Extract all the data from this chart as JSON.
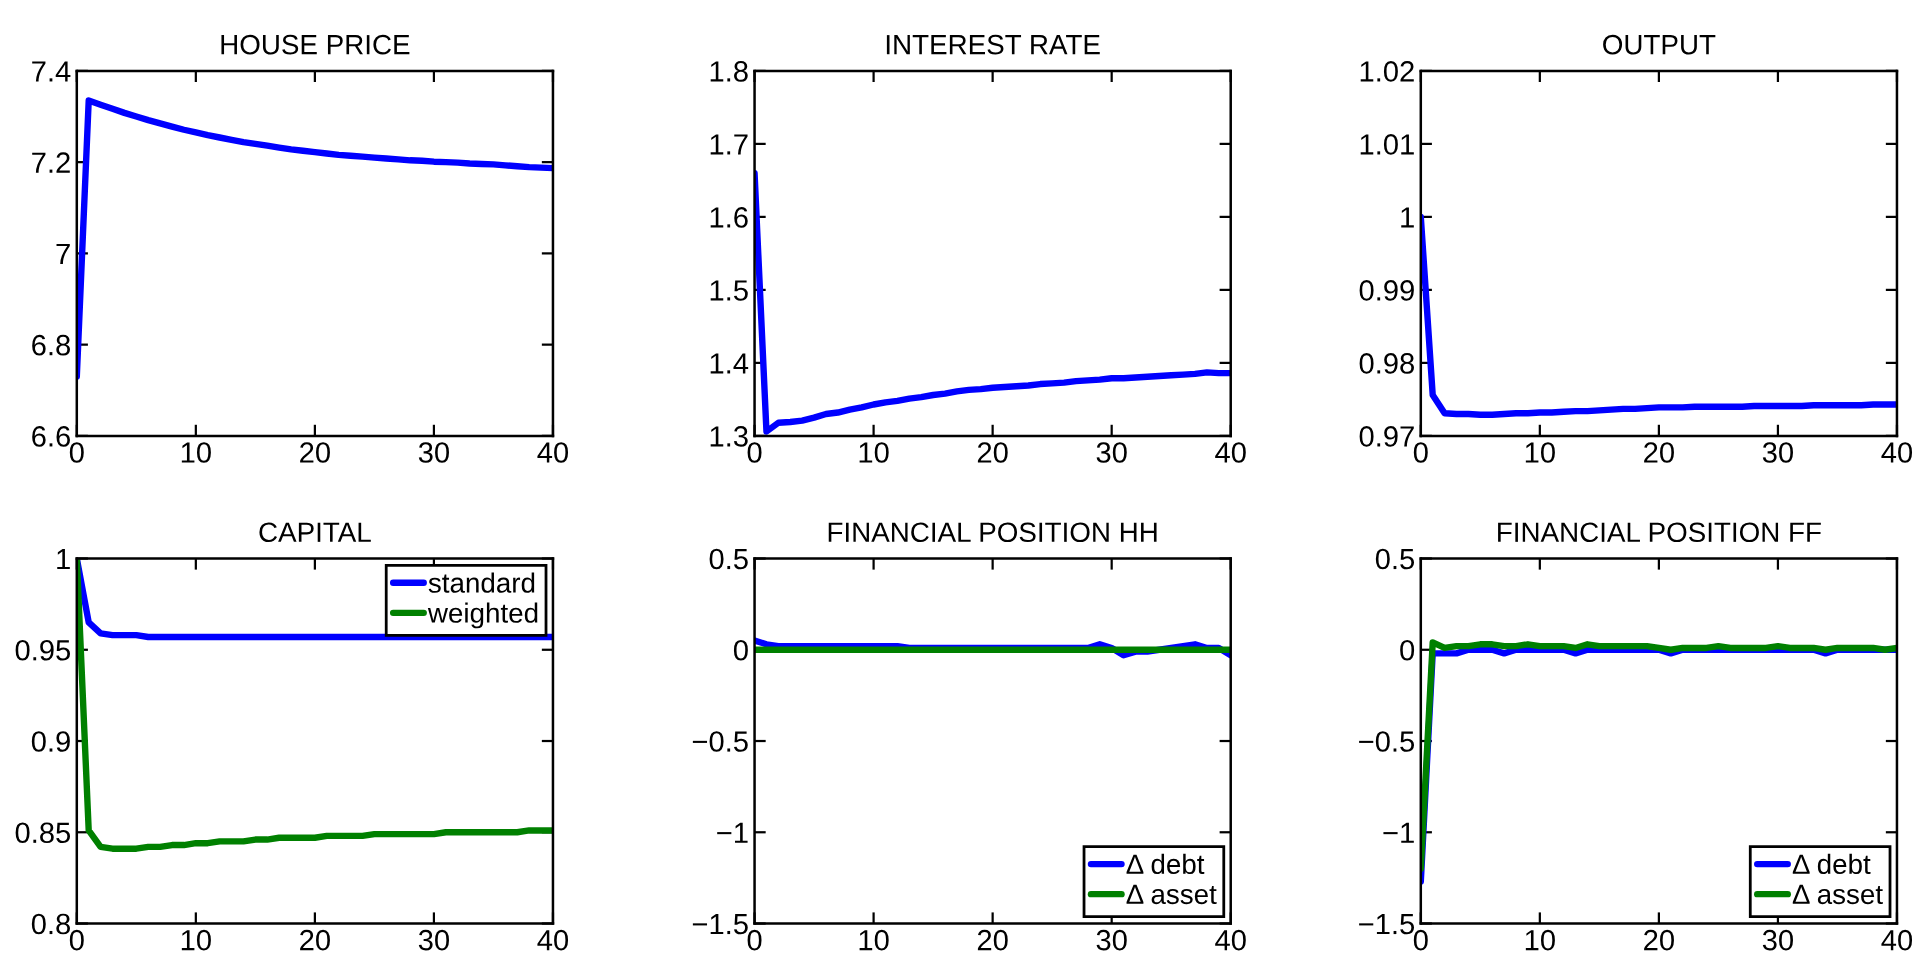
{
  "chart_data": [
    {
      "type": "line",
      "title": "HOUSE PRICE",
      "x": [
        0,
        1,
        2,
        3,
        4,
        5,
        6,
        7,
        8,
        9,
        10,
        11,
        12,
        13,
        14,
        15,
        16,
        17,
        18,
        19,
        20,
        21,
        22,
        23,
        24,
        25,
        26,
        27,
        28,
        29,
        30,
        31,
        32,
        33,
        34,
        35,
        36,
        37,
        38,
        39,
        40
      ],
      "series": [
        {
          "color": "#0000ff",
          "values": [
            6.73,
            7.335,
            7.326,
            7.317,
            7.308,
            7.3,
            7.292,
            7.285,
            7.278,
            7.271,
            7.265,
            7.259,
            7.254,
            7.249,
            7.244,
            7.24,
            7.236,
            7.232,
            7.228,
            7.225,
            7.222,
            7.219,
            7.216,
            7.214,
            7.212,
            7.21,
            7.208,
            7.206,
            7.204,
            7.203,
            7.201,
            7.2,
            7.199,
            7.197,
            7.196,
            7.195,
            7.193,
            7.191,
            7.189,
            7.188,
            7.187
          ]
        }
      ],
      "xlim": [
        0,
        40
      ],
      "xticks": [
        0,
        10,
        20,
        30,
        40
      ],
      "ylim": [
        6.6,
        7.4
      ],
      "yticks": [
        6.6,
        6.8,
        7,
        7.2,
        7.4
      ],
      "legend": false
    },
    {
      "type": "line",
      "title": "INTEREST RATE",
      "x": [
        0,
        1,
        2,
        3,
        4,
        5,
        6,
        7,
        8,
        9,
        10,
        11,
        12,
        13,
        14,
        15,
        16,
        17,
        18,
        19,
        20,
        21,
        22,
        23,
        24,
        25,
        26,
        27,
        28,
        29,
        30,
        31,
        32,
        33,
        34,
        35,
        36,
        37,
        38,
        39,
        40
      ],
      "series": [
        {
          "color": "#0000ff",
          "values": [
            1.66,
            1.306,
            1.318,
            1.319,
            1.321,
            1.325,
            1.33,
            1.332,
            1.336,
            1.339,
            1.343,
            1.346,
            1.348,
            1.351,
            1.353,
            1.356,
            1.358,
            1.361,
            1.363,
            1.364,
            1.366,
            1.367,
            1.368,
            1.369,
            1.371,
            1.372,
            1.373,
            1.375,
            1.376,
            1.377,
            1.379,
            1.379,
            1.38,
            1.381,
            1.382,
            1.383,
            1.384,
            1.385,
            1.387,
            1.386,
            1.386
          ]
        }
      ],
      "xlim": [
        0,
        40
      ],
      "xticks": [
        0,
        10,
        20,
        30,
        40
      ],
      "ylim": [
        1.3,
        1.8
      ],
      "yticks": [
        1.3,
        1.4,
        1.5,
        1.6,
        1.7,
        1.8
      ],
      "legend": false
    },
    {
      "type": "line",
      "title": "OUTPUT",
      "x": [
        0,
        1,
        2,
        3,
        4,
        5,
        6,
        7,
        8,
        9,
        10,
        11,
        12,
        13,
        14,
        15,
        16,
        17,
        18,
        19,
        20,
        21,
        22,
        23,
        24,
        25,
        26,
        27,
        28,
        29,
        30,
        31,
        32,
        33,
        34,
        35,
        36,
        37,
        38,
        39,
        40
      ],
      "series": [
        {
          "color": "#0000ff",
          "values": [
            1.0,
            0.9756,
            0.9731,
            0.973,
            0.973,
            0.9729,
            0.9729,
            0.973,
            0.9731,
            0.9731,
            0.9732,
            0.9732,
            0.9733,
            0.9734,
            0.9734,
            0.9735,
            0.9736,
            0.9737,
            0.9737,
            0.9738,
            0.9739,
            0.9739,
            0.9739,
            0.974,
            0.974,
            0.974,
            0.974,
            0.974,
            0.9741,
            0.9741,
            0.9741,
            0.9741,
            0.9741,
            0.9742,
            0.9742,
            0.9742,
            0.9742,
            0.9742,
            0.9743,
            0.9743,
            0.9743
          ]
        }
      ],
      "xlim": [
        0,
        40
      ],
      "xticks": [
        0,
        10,
        20,
        30,
        40
      ],
      "ylim": [
        0.97,
        1.02
      ],
      "yticks": [
        0.97,
        0.98,
        0.99,
        1,
        1.01,
        1.02
      ],
      "legend": false
    },
    {
      "type": "line",
      "title": "CAPITAL",
      "x": [
        0,
        1,
        2,
        3,
        4,
        5,
        6,
        7,
        8,
        9,
        10,
        11,
        12,
        13,
        14,
        15,
        16,
        17,
        18,
        19,
        20,
        21,
        22,
        23,
        24,
        25,
        26,
        27,
        28,
        29,
        30,
        31,
        32,
        33,
        34,
        35,
        36,
        37,
        38,
        39,
        40
      ],
      "series": [
        {
          "name": "standard",
          "color": "#0000ff",
          "values": [
            1,
            0.965,
            0.959,
            0.958,
            0.958,
            0.958,
            0.957,
            0.957,
            0.957,
            0.957,
            0.957,
            0.957,
            0.957,
            0.957,
            0.957,
            0.957,
            0.957,
            0.957,
            0.957,
            0.957,
            0.957,
            0.957,
            0.957,
            0.957,
            0.957,
            0.957,
            0.957,
            0.957,
            0.957,
            0.957,
            0.957,
            0.957,
            0.957,
            0.957,
            0.957,
            0.957,
            0.957,
            0.957,
            0.957,
            0.957,
            0.957
          ]
        },
        {
          "name": "weighted",
          "color": "#008000",
          "values": [
            1,
            0.851,
            0.842,
            0.841,
            0.841,
            0.841,
            0.842,
            0.842,
            0.843,
            0.843,
            0.844,
            0.844,
            0.845,
            0.845,
            0.845,
            0.846,
            0.846,
            0.847,
            0.847,
            0.847,
            0.847,
            0.848,
            0.848,
            0.848,
            0.848,
            0.849,
            0.849,
            0.849,
            0.849,
            0.849,
            0.849,
            0.85,
            0.85,
            0.85,
            0.85,
            0.85,
            0.85,
            0.85,
            0.851,
            0.851,
            0.851
          ]
        }
      ],
      "xlim": [
        0,
        40
      ],
      "xticks": [
        0,
        10,
        20,
        30,
        40
      ],
      "ylim": [
        0.8,
        1
      ],
      "yticks": [
        0.8,
        0.85,
        0.9,
        0.95,
        1
      ],
      "legend": "top right"
    },
    {
      "type": "line",
      "title": "FINANCIAL POSITION HH",
      "x": [
        0,
        1,
        2,
        3,
        4,
        5,
        6,
        7,
        8,
        9,
        10,
        11,
        12,
        13,
        14,
        15,
        16,
        17,
        18,
        19,
        20,
        21,
        22,
        23,
        24,
        25,
        26,
        27,
        28,
        29,
        30,
        31,
        32,
        33,
        34,
        35,
        36,
        37,
        38,
        39,
        40
      ],
      "series": [
        {
          "name": "Δ debt",
          "color": "#0000ff",
          "values": [
            0.05,
            0.03,
            0.02,
            0.02,
            0.02,
            0.02,
            0.02,
            0.02,
            0.02,
            0.02,
            0.02,
            0.02,
            0.02,
            0.01,
            0.01,
            0.01,
            0.01,
            0.01,
            0.01,
            0.01,
            0.01,
            0.01,
            0.01,
            0.01,
            0.01,
            0.01,
            0.01,
            0.01,
            0.01,
            0.03,
            0.01,
            -0.03,
            -0.01,
            -0.01,
            0,
            0.01,
            0.02,
            0.03,
            0.01,
            0.01,
            -0.03
          ]
        },
        {
          "name": "Δ asset",
          "color": "#008000",
          "values": [
            0,
            0,
            0,
            0,
            0,
            0,
            0,
            0,
            0,
            0,
            0,
            0,
            0,
            0,
            0,
            0,
            0,
            0,
            0,
            0,
            0,
            0,
            0,
            0,
            0,
            0,
            0,
            0,
            0,
            0,
            0,
            0,
            0,
            0,
            0,
            0,
            0,
            0,
            0,
            0,
            0
          ]
        }
      ],
      "xlim": [
        0,
        40
      ],
      "xticks": [
        0,
        10,
        20,
        30,
        40
      ],
      "ylim": [
        -1.5,
        0.5
      ],
      "yticks": [
        {
          "value": -1.5,
          "label": "−1.5"
        },
        {
          "value": -1,
          "label": "−1"
        },
        {
          "value": -0.5,
          "label": "−0.5"
        },
        0,
        0.5
      ],
      "legend": "bottom right"
    },
    {
      "type": "line",
      "title": "FINANCIAL POSITION FF",
      "x": [
        0,
        1,
        2,
        3,
        4,
        5,
        6,
        7,
        8,
        9,
        10,
        11,
        12,
        13,
        14,
        15,
        16,
        17,
        18,
        19,
        20,
        21,
        22,
        23,
        24,
        25,
        26,
        27,
        28,
        29,
        30,
        31,
        32,
        33,
        34,
        35,
        36,
        37,
        38,
        39,
        40
      ],
      "series": [
        {
          "name": "Δ debt",
          "color": "#0000ff",
          "values": [
            -1.27,
            -0.02,
            -0.02,
            -0.02,
            0,
            0,
            0,
            -0.02,
            0,
            0,
            0,
            0,
            0,
            -0.02,
            0,
            0,
            0,
            0,
            0,
            0,
            0,
            -0.02,
            0,
            0,
            0,
            0,
            0,
            0,
            0,
            0,
            0,
            0,
            0,
            0,
            -0.02,
            0,
            0,
            0,
            0,
            0,
            0
          ]
        },
        {
          "name": "Δ asset",
          "color": "#008000",
          "values": [
            -1.2,
            0.04,
            0.01,
            0.02,
            0.02,
            0.03,
            0.03,
            0.02,
            0.02,
            0.03,
            0.02,
            0.02,
            0.02,
            0.01,
            0.03,
            0.02,
            0.02,
            0.02,
            0.02,
            0.02,
            0.01,
            0,
            0.01,
            0.01,
            0.01,
            0.02,
            0.01,
            0.01,
            0.01,
            0.01,
            0.02,
            0.01,
            0.01,
            0.01,
            0,
            0.01,
            0.01,
            0.01,
            0.01,
            0,
            0.01
          ]
        }
      ],
      "xlim": [
        0,
        40
      ],
      "xticks": [
        0,
        10,
        20,
        30,
        40
      ],
      "ylim": [
        -1.5,
        0.5
      ],
      "yticks": [
        {
          "value": -1.5,
          "label": "−1.5"
        },
        {
          "value": -1,
          "label": "−1"
        },
        {
          "value": -0.5,
          "label": "−0.5"
        },
        0,
        0.5
      ],
      "legend": "bottom right"
    }
  ]
}
